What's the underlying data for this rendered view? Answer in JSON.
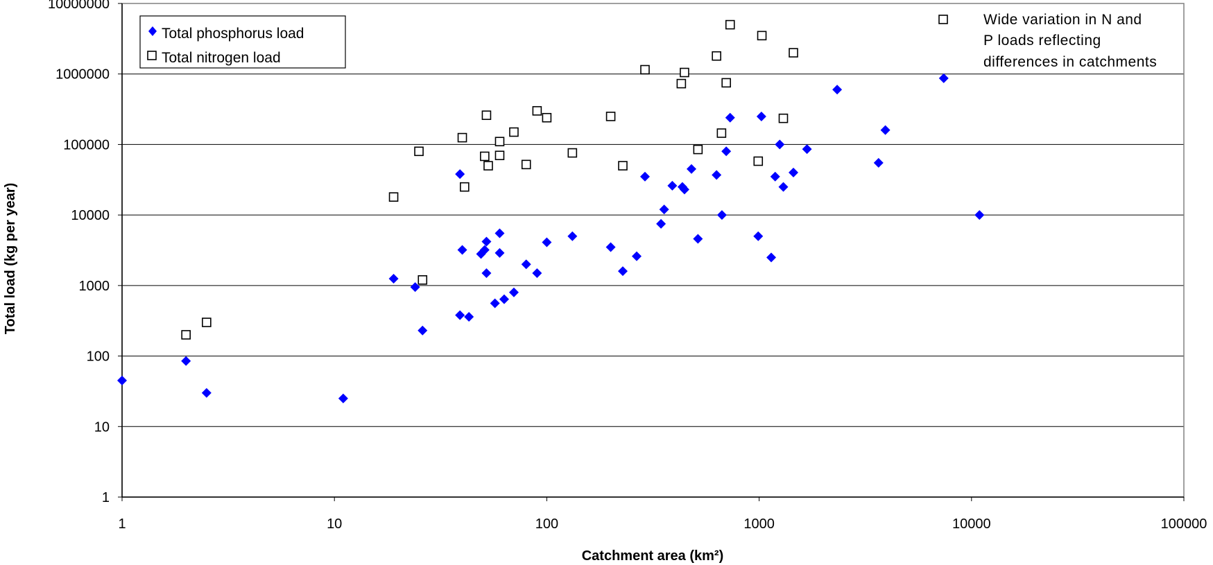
{
  "chart_data": {
    "type": "scatter",
    "title": "",
    "xlabel": "Catchment area (km²)",
    "ylabel": "Total load (kg per year)",
    "x_scale": "log",
    "y_scale": "log",
    "xlim": [
      1,
      100000
    ],
    "ylim": [
      1,
      10000000
    ],
    "x_ticks": [
      "1",
      "10",
      "100",
      "1000",
      "10000",
      "100000"
    ],
    "y_ticks": [
      "1",
      "10",
      "100",
      "1000",
      "10000",
      "100000",
      "1000000",
      "10000000"
    ],
    "grid": "horizontal major gridlines",
    "legend_position": "top-left",
    "colors": {
      "phosphorus": "#0000ff",
      "nitrogen": "#000000",
      "gridlines": "#000000"
    },
    "annotation": {
      "lines": [
        "Wide variation in N and",
        "P loads reflecting",
        "differences in catchments"
      ],
      "marker": "open-square"
    },
    "series": [
      {
        "name": "Total phosphorus load",
        "marker": "filled-diamond",
        "points": [
          [
            1,
            45
          ],
          [
            2,
            85
          ],
          [
            2.5,
            30
          ],
          [
            11,
            25
          ],
          [
            19,
            1250
          ],
          [
            24,
            950
          ],
          [
            26,
            230
          ],
          [
            39,
            38000
          ],
          [
            40,
            3200
          ],
          [
            39,
            380
          ],
          [
            43,
            360
          ],
          [
            49,
            2800
          ],
          [
            51,
            3200
          ],
          [
            52,
            4200
          ],
          [
            52,
            1500
          ],
          [
            57,
            560
          ],
          [
            60,
            5500
          ],
          [
            60,
            2900
          ],
          [
            63,
            640
          ],
          [
            70,
            800
          ],
          [
            80,
            2000
          ],
          [
            90,
            1500
          ],
          [
            100,
            4100
          ],
          [
            132,
            5000
          ],
          [
            200,
            3500
          ],
          [
            228,
            1600
          ],
          [
            265,
            2600
          ],
          [
            290,
            35000
          ],
          [
            345,
            7500
          ],
          [
            357,
            12000
          ],
          [
            390,
            26000
          ],
          [
            435,
            25000
          ],
          [
            445,
            23000
          ],
          [
            480,
            45000
          ],
          [
            515,
            4600
          ],
          [
            630,
            37000
          ],
          [
            668,
            10000
          ],
          [
            700,
            80000
          ],
          [
            730,
            240000
          ],
          [
            990,
            5000
          ],
          [
            1025,
            250000
          ],
          [
            1140,
            2500
          ],
          [
            1190,
            35000
          ],
          [
            1250,
            100000
          ],
          [
            1300,
            25000
          ],
          [
            1450,
            40000
          ],
          [
            1680,
            86000
          ],
          [
            2330,
            600000
          ],
          [
            3650,
            55000
          ],
          [
            3930,
            160000
          ],
          [
            7400,
            870000
          ],
          [
            10900,
            10000
          ]
        ]
      },
      {
        "name": "Total nitrogen load",
        "marker": "open-square",
        "points": [
          [
            2,
            200
          ],
          [
            2.5,
            300
          ],
          [
            19,
            18000
          ],
          [
            25,
            80000
          ],
          [
            26,
            1200
          ],
          [
            40,
            125000
          ],
          [
            41,
            25000
          ],
          [
            51,
            68000
          ],
          [
            52,
            260000
          ],
          [
            53,
            50000
          ],
          [
            60,
            110000
          ],
          [
            60,
            70000
          ],
          [
            70,
            150000
          ],
          [
            80,
            52000
          ],
          [
            90,
            300000
          ],
          [
            100,
            240000
          ],
          [
            132,
            76000
          ],
          [
            200,
            250000
          ],
          [
            228,
            50000
          ],
          [
            290,
            1150000
          ],
          [
            430,
            730000
          ],
          [
            445,
            1050000
          ],
          [
            515,
            85000
          ],
          [
            630,
            1800000
          ],
          [
            665,
            145000
          ],
          [
            700,
            750000
          ],
          [
            730,
            5000000
          ],
          [
            990,
            58000
          ],
          [
            1030,
            3500000
          ],
          [
            1300,
            235000
          ],
          [
            1450,
            2000000
          ]
        ]
      }
    ]
  }
}
